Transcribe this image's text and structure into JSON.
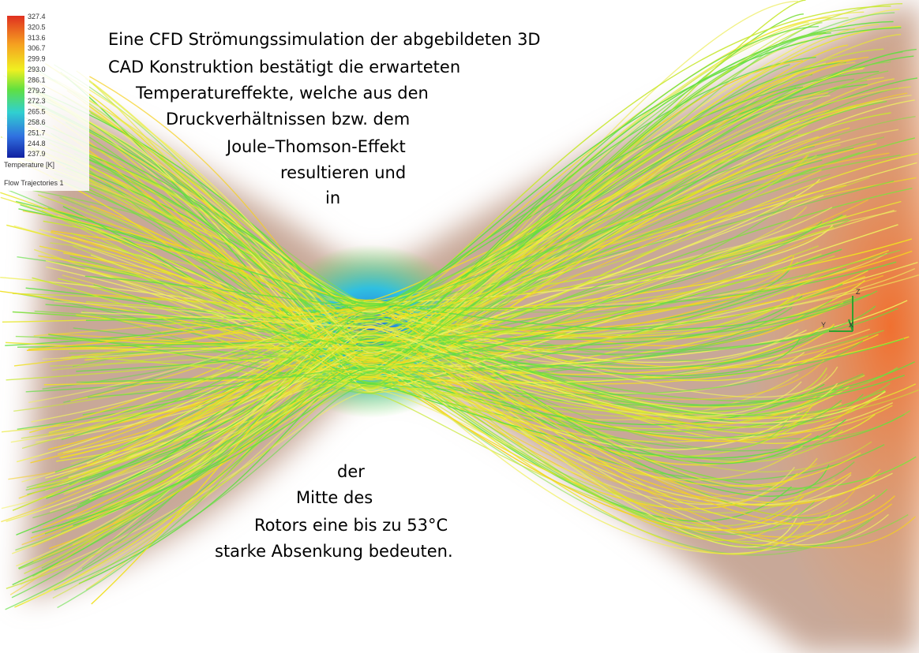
{
  "legend": {
    "values": [
      "327.4",
      "320.5",
      "313.6",
      "306.7",
      "299.9",
      "293.0",
      "286.1",
      "279.2",
      "272.3",
      "265.5",
      "258.6",
      "251.7",
      "244.8",
      "237.9"
    ],
    "title": "Temperature [K]",
    "subtitle": "Flow Trajectories 1"
  },
  "axes": [
    "Z",
    "Y",
    "X"
  ],
  "text": {
    "top_lines": [
      "Eine CFD Strömungssimulation der abgebildeten 3D",
      "CAD Konstruktion bestätigt die erwarteten",
      "Temperatureffekte, welche aus den",
      "Druckverhältnissen bzw. dem",
      "Joule–Thomson-Effekt",
      "resultieren und",
      "in"
    ],
    "bottom_lines": [
      "der",
      "Mitte des",
      "Rotors eine bis zu 53°C",
      "starke Absenkung bedeuten."
    ]
  }
}
